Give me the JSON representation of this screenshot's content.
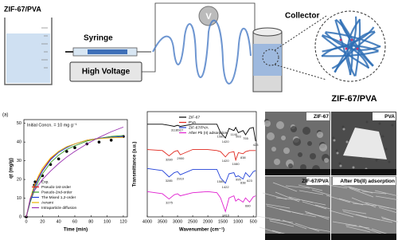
{
  "diagram": {
    "beaker_label": "ZIF-67/PVA",
    "syringe": "Syringe",
    "high_voltage": "High Voltage",
    "voltage": "V",
    "collector": "Collector",
    "composite_label": "ZIF-67/PVA"
  },
  "chart_data": [
    {
      "type": "line",
      "panel_label": "(a)",
      "annotation": "Initial Concn. = 10 mg g⁻¹",
      "x_label": "Time (min)",
      "y_label": "qt (mg/g)",
      "x": [
        0,
        5,
        10,
        15,
        20,
        30,
        40,
        50,
        60,
        75,
        90,
        105,
        120
      ],
      "xlim": [
        -3,
        125
      ],
      "xticks": [
        0,
        20,
        40,
        60,
        80,
        100,
        120
      ],
      "ylim": [
        0,
        52
      ],
      "yticks": [
        0,
        10,
        20,
        30,
        40,
        50
      ],
      "series": [
        {
          "name": "Exp.",
          "color": "#000000",
          "mode": "markers",
          "values": [
            0,
            null,
            17,
            null,
            22,
            28,
            31,
            35,
            37,
            39,
            40,
            41,
            43
          ]
        },
        {
          "name": "Pseudo-1st-order",
          "color": "#e0261c",
          "values": [
            0,
            9,
            16,
            21,
            25,
            31,
            35,
            37.5,
            39,
            41,
            42,
            42.5,
            42.8
          ]
        },
        {
          "name": "Pseudo-2nd-order",
          "color": "#3a9a2a",
          "values": [
            0,
            8,
            14,
            19,
            23,
            29,
            33,
            36,
            38,
            40.5,
            42,
            43,
            43.5
          ]
        },
        {
          "name": "The Mixed 1,2-order",
          "color": "#2140d8",
          "values": [
            0,
            9,
            15.5,
            20.5,
            24.5,
            30.5,
            34.5,
            37,
            39,
            41,
            42,
            42.6,
            43
          ]
        },
        {
          "name": "Avrami",
          "color": "#e8b400",
          "values": [
            0,
            10,
            17,
            22,
            26,
            31.5,
            35,
            37.5,
            39,
            41,
            41.8,
            42.3,
            42.5
          ]
        },
        {
          "name": "Intraparticle diffusion",
          "color": "#9a2fb0",
          "values": [
            0,
            10,
            14,
            17,
            20,
            24.5,
            28.5,
            32,
            35,
            39,
            42.5,
            45.5,
            48
          ]
        }
      ]
    },
    {
      "type": "line",
      "x_label": "Wavenumber (cm⁻¹)",
      "y_label": "Transmittance (a.u.)",
      "x": [
        4000,
        3500,
        3280,
        3110,
        3000,
        2910,
        2500,
        2000,
        1700,
        1580,
        1420,
        1300,
        1140,
        1080,
        993,
        838,
        755,
        623,
        500,
        423
      ],
      "xlim": [
        4000,
        400
      ],
      "xticks": [
        4000,
        3500,
        3000,
        2500,
        2000,
        1500,
        1000,
        500
      ],
      "ylim": [
        0,
        100
      ],
      "series": [
        {
          "name": "ZIF-67",
          "color": "#000000",
          "values": [
            88,
            88,
            87,
            86,
            87,
            86,
            88,
            88,
            88,
            80,
            75,
            84,
            82,
            85,
            80,
            82,
            78,
            84,
            85,
            72
          ],
          "peaks": [
            3110,
            2927,
            1580,
            1420,
            1140,
            993,
            755,
            423
          ]
        },
        {
          "name": "PVA",
          "color": "#e0261c",
          "values": [
            64,
            63,
            58,
            62,
            63,
            59,
            64,
            64,
            63,
            62,
            57,
            61,
            62,
            54,
            61,
            60,
            62,
            63,
            63,
            63
          ],
          "peaks": [
            3280,
            2900,
            1420,
            1080,
            838
          ]
        },
        {
          "name": "ZIF-67/PVA",
          "color": "#2140d8",
          "values": [
            46,
            44,
            38,
            42,
            43,
            40,
            45,
            45,
            45,
            37,
            32,
            41,
            42,
            38,
            39,
            36,
            42,
            38,
            43,
            44
          ],
          "peaks": [
            3285,
            2910,
            1580,
            1422,
            995,
            838,
            623
          ]
        },
        {
          "name": "After Pb (II) adsorption",
          "color": "#e020d0",
          "values": [
            24,
            22,
            17,
            21,
            22,
            20,
            23,
            24,
            23,
            18,
            5,
            18,
            20,
            15,
            17,
            14,
            18,
            14,
            19,
            20
          ],
          "peaks": [
            3275,
            1410,
            680
          ]
        }
      ]
    }
  ],
  "micrographs": [
    {
      "label": "ZIF-67"
    },
    {
      "label": "PVA"
    },
    {
      "label": "ZIF-67/PVA"
    },
    {
      "label": "After Pb(II) adsorption"
    }
  ]
}
